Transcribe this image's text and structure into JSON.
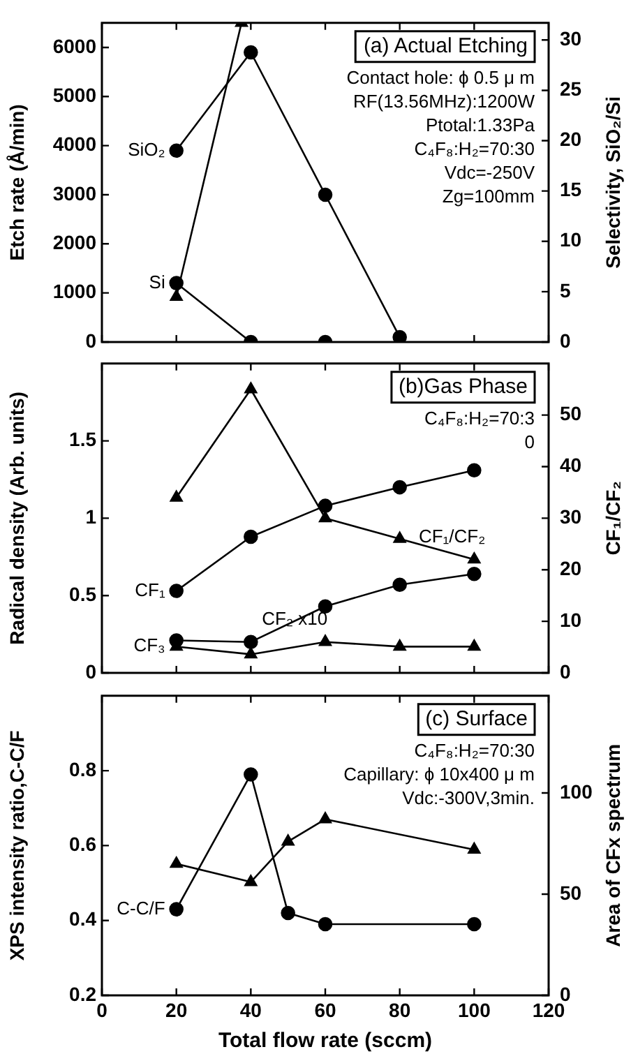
{
  "chart_data": [
    {
      "type": "line",
      "title": "(a) Actual Etching",
      "ylabel": "Etch rate (Å/min)",
      "y2label": "Selectivity, SiO₂/Si",
      "annotations": [
        "Contact hole: ϕ 0.5 μ m",
        "RF(13.56MHz):1200W",
        "Ptotal:1.33Pa",
        "C₄F₈:H₂=70:30",
        "Vdc=-250V",
        "Zg=100mm"
      ],
      "xlim": [
        0,
        120
      ],
      "xticks": [
        0,
        20,
        40,
        60,
        80,
        100,
        120
      ],
      "ylim": [
        0,
        6500
      ],
      "yticks": [
        0,
        1000,
        2000,
        3000,
        4000,
        5000,
        6000
      ],
      "y2lim": [
        0,
        31.7
      ],
      "y2ticks": [
        0,
        5,
        10,
        15,
        20,
        25,
        30
      ],
      "tick_labels": "y",
      "grid": false,
      "legend": false,
      "series": [
        {
          "name": "SiO₂",
          "color": "#000000",
          "marker": "circle",
          "x": [
            20,
            40,
            60,
            80
          ],
          "values": [
            3900,
            5900,
            3000,
            100
          ]
        },
        {
          "name": "Si",
          "color": "#000000",
          "marker": "circle",
          "x": [
            20,
            40,
            60
          ],
          "values": [
            1200,
            0,
            0
          ]
        },
        {
          "color": "#000000",
          "marker": "triangle",
          "axis": "y2",
          "x": [
            20,
            37.5
          ],
          "values": [
            4.5,
            31.7
          ]
        }
      ]
    },
    {
      "type": "line",
      "title": "(b)Gas Phase",
      "ylabel": "Radical density (Arb. units)",
      "y2label": "CF₁/CF₂",
      "annotations": [
        "C₄F₈:H₂=70:3",
        "0"
      ],
      "xlim": [
        0,
        120
      ],
      "xticks": [
        0,
        20,
        40,
        60,
        80,
        100,
        120
      ],
      "ylim": [
        0,
        2
      ],
      "yticks": [
        0,
        0.5,
        1.0,
        1.5
      ],
      "y2lim": [
        0,
        60
      ],
      "y2ticks": [
        0,
        10,
        20,
        30,
        40,
        50
      ],
      "tick_labels": "y",
      "grid": false,
      "legend": false,
      "series": [
        {
          "name": "CF₁",
          "color": "#000000",
          "marker": "circle",
          "x": [
            20,
            40,
            60,
            80,
            100
          ],
          "values": [
            0.53,
            0.88,
            1.08,
            1.2,
            1.31
          ]
        },
        {
          "name": "CF₂ x10",
          "color": "#000000",
          "marker": "circle",
          "x": [
            20,
            40,
            60,
            80,
            100
          ],
          "values": [
            0.21,
            0.2,
            0.43,
            0.57,
            0.64
          ]
        },
        {
          "name": "CF₃",
          "color": "#000000",
          "marker": "triangle",
          "x": [
            20,
            40,
            60,
            80,
            100
          ],
          "values": [
            0.17,
            0.12,
            0.2,
            0.17,
            0.17
          ]
        },
        {
          "name": "CF₁/CF₂",
          "color": "#000000",
          "marker": "triangle",
          "axis": "y2",
          "x": [
            20,
            40,
            60,
            80,
            100
          ],
          "values": [
            34,
            55,
            30,
            26,
            22
          ]
        }
      ]
    },
    {
      "type": "line",
      "title": "(c) Surface",
      "xlabel": "Total flow rate (sccm)",
      "ylabel": "XPS intensity ratio,C-C/F",
      "y2label": "Area of CFx spectrum",
      "annotations": [
        "C₄F₈:H₂=70:30",
        "Capillary: ϕ 10x400 μ m",
        "Vdc:-300V,3min."
      ],
      "xlim": [
        0,
        120
      ],
      "xticks": [
        0,
        20,
        40,
        60,
        80,
        100,
        120
      ],
      "ylim": [
        0.2,
        1.0
      ],
      "yticks": [
        0.2,
        0.4,
        0.6,
        0.8
      ],
      "y2lim": [
        0,
        148
      ],
      "y2ticks": [
        0,
        50,
        100
      ],
      "grid": false,
      "legend": false,
      "series": [
        {
          "name": "C-C/F",
          "color": "#000000",
          "marker": "circle",
          "x": [
            20,
            40,
            50,
            60,
            100
          ],
          "values": [
            0.43,
            0.79,
            0.42,
            0.39,
            0.39
          ]
        },
        {
          "color": "#000000",
          "marker": "triangle",
          "axis": "y2",
          "x": [
            20,
            40,
            50,
            60,
            100
          ],
          "values": [
            65,
            56,
            76,
            87,
            72
          ]
        }
      ]
    }
  ]
}
